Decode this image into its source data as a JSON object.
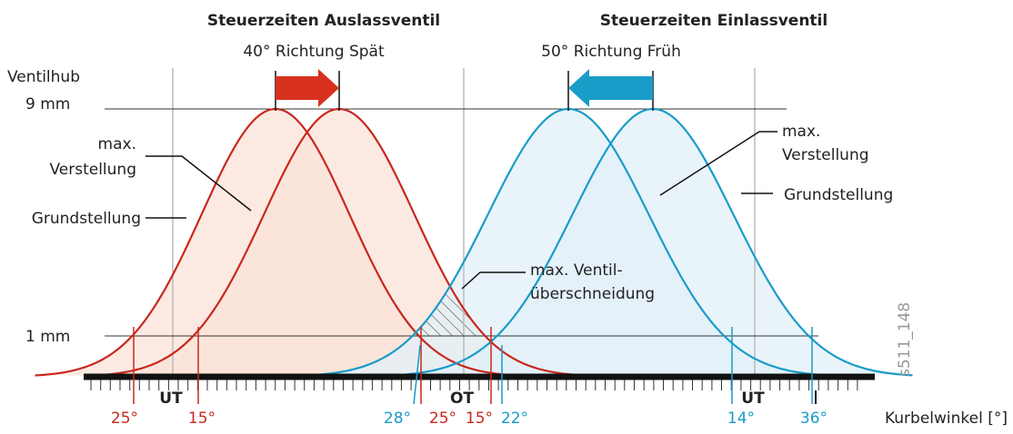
{
  "header": {
    "exhaust_title": "Steuerzeiten Auslassventil",
    "exhaust_shift": "40° Richtung Spät",
    "intake_title": "Steuerzeiten Einlassventil",
    "intake_shift": "50° Richtung Früh"
  },
  "axis": {
    "y_label": "Ventilhub",
    "lift_max": "9 mm",
    "lift_min": "1 mm",
    "x_label": "Kurbelwinkel [°]"
  },
  "callouts": {
    "left_max": [
      "max.",
      "Verstellung"
    ],
    "left_base": "Grundstellung",
    "right_max": [
      "max.",
      "Verstellung"
    ],
    "right_base": "Grundstellung",
    "overlap": [
      "max. Ventil-",
      "überschneidung"
    ]
  },
  "angles": [
    "25°",
    "15°",
    "UT",
    "28°",
    "25°",
    "OT",
    "15°",
    "22°",
    "14°",
    "UT",
    "36°"
  ],
  "figure_id": "s511_148"
}
